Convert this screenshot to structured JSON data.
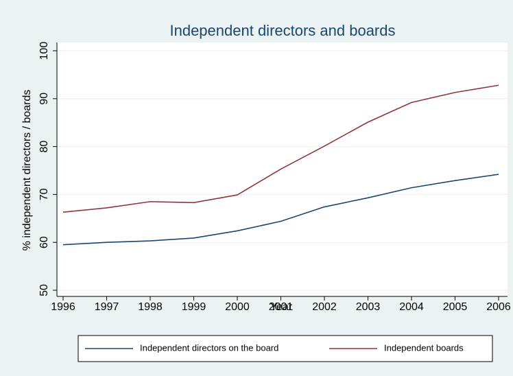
{
  "chart_data": {
    "type": "line",
    "title": "Independent directors and boards",
    "x_label": "Year",
    "y_label": "% independent directors / boards",
    "x": [
      1996,
      1997,
      1998,
      1999,
      2000,
      2001,
      2002,
      2003,
      2004,
      2005,
      2006
    ],
    "series": [
      {
        "name": "Independent directors on the board",
        "color": "#1a476f",
        "values": [
          59.5,
          60.0,
          60.3,
          60.9,
          62.4,
          64.4,
          67.4,
          69.3,
          71.4,
          72.9,
          74.2
        ]
      },
      {
        "name": "Independent boards",
        "color": "#90353b",
        "values": [
          66.3,
          67.2,
          68.5,
          68.3,
          69.9,
          75.3,
          80.1,
          85.1,
          89.2,
          91.3,
          92.8
        ]
      }
    ],
    "xlim": [
      1996,
      2006
    ],
    "xticks": [
      1996,
      1997,
      1998,
      1999,
      2000,
      2001,
      2002,
      2003,
      2004,
      2005,
      2006
    ],
    "ylim": [
      50,
      100
    ],
    "yticks": [
      50,
      60,
      70,
      80,
      90,
      100
    ],
    "grid": true,
    "legend": "bottom"
  }
}
